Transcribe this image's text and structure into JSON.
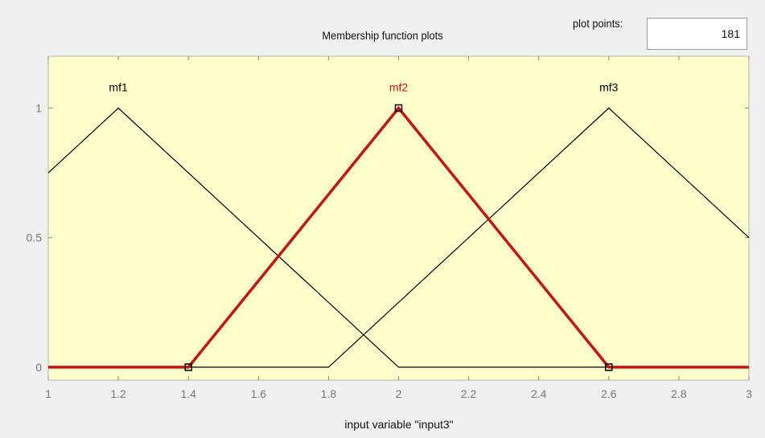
{
  "panel": {
    "title": "Membership function plots",
    "plot_points_label": "plot points:",
    "plot_points_value": "181"
  },
  "colors": {
    "plot_background": "#ffffcc",
    "selected": "#cc1111",
    "normal": "#000000",
    "tick_text": "#777777"
  },
  "chart_data": {
    "type": "line",
    "title": "Membership function plots",
    "xlabel": "input variable \"input3\"",
    "ylabel": "",
    "xlim": [
      1,
      3
    ],
    "ylim": [
      -0.05,
      1.2
    ],
    "xticks": [
      1,
      1.2,
      1.4,
      1.6,
      1.8,
      2,
      2.2,
      2.4,
      2.6,
      2.8,
      3
    ],
    "xtick_labels": [
      "1",
      "1.2",
      "1.4",
      "1.6",
      "1.8",
      "2",
      "2.2",
      "2.4",
      "2.6",
      "2.8",
      "3"
    ],
    "yticks": [
      0,
      0.5,
      1
    ],
    "ytick_labels": [
      "0",
      "0.5",
      "1"
    ],
    "grid": false,
    "series": [
      {
        "name": "mf1",
        "selected": false,
        "points": [
          [
            1,
            0.75
          ],
          [
            1.2,
            1
          ],
          [
            2,
            0
          ],
          [
            3,
            0
          ]
        ],
        "label_pos": [
          1.2,
          1.08
        ]
      },
      {
        "name": "mf2",
        "selected": true,
        "points": [
          [
            1,
            0
          ],
          [
            1.4,
            0
          ],
          [
            2,
            1
          ],
          [
            2.6,
            0
          ],
          [
            3,
            0
          ]
        ],
        "markers": [
          [
            1.4,
            0
          ],
          [
            2,
            1
          ],
          [
            2.6,
            0
          ]
        ],
        "label_pos": [
          2,
          1.08
        ]
      },
      {
        "name": "mf3",
        "selected": false,
        "points": [
          [
            1,
            0
          ],
          [
            1.8,
            0
          ],
          [
            2.6,
            1
          ],
          [
            3,
            0.5
          ]
        ],
        "label_pos": [
          2.6,
          1.08
        ]
      }
    ]
  }
}
